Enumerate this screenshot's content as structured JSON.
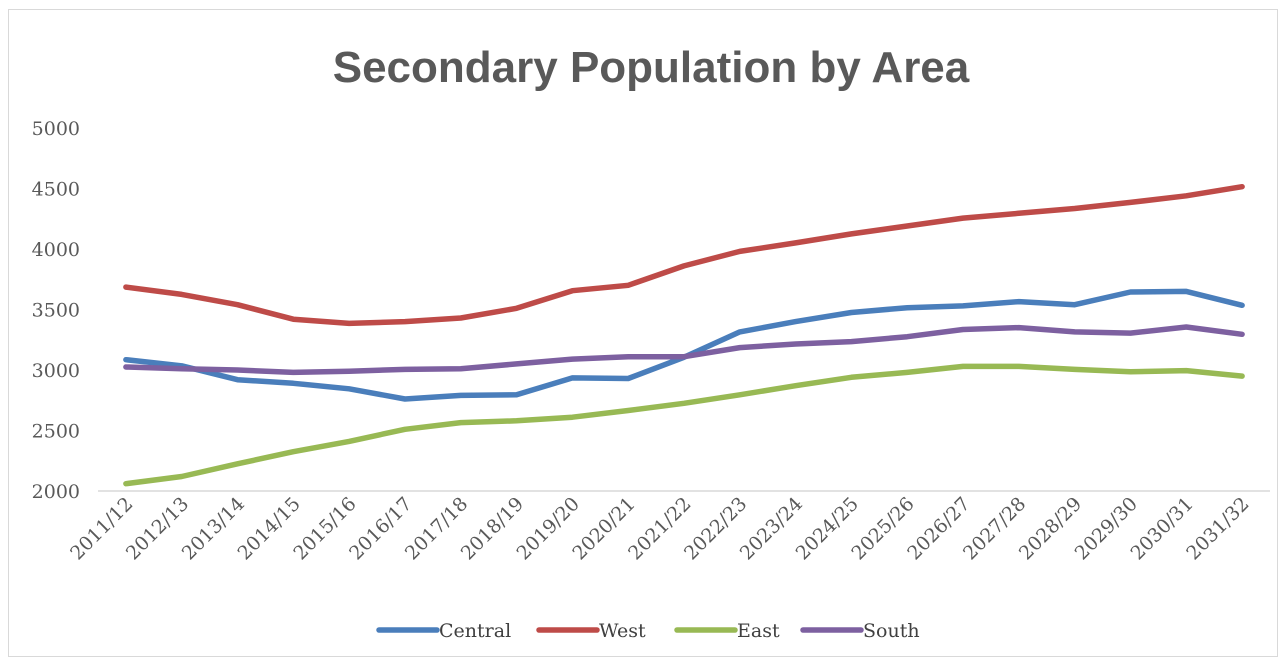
{
  "chart_data": {
    "type": "line",
    "title": "Secondary Population by Area",
    "xlabel": "",
    "ylabel": "",
    "ylim": [
      2000,
      5000
    ],
    "y_ticks": [
      2000,
      2500,
      3000,
      3500,
      4000,
      4500,
      5000
    ],
    "grid": false,
    "legend_position": "bottom",
    "categories": [
      "2011/12",
      "2012/13",
      "2013/14",
      "2014/15",
      "2015/16",
      "2016/17",
      "2017/18",
      "2018/19",
      "2019/20",
      "2020/21",
      "2021/22",
      "2022/23",
      "2023/24",
      "2024/25",
      "2025/26",
      "2026/27",
      "2027/28",
      "2028/29",
      "2029/30",
      "2030/31",
      "2031/32"
    ],
    "series": [
      {
        "name": "Central",
        "color": "#4a7ebb",
        "values": [
          3085,
          3035,
          2920,
          2890,
          2845,
          2760,
          2790,
          2795,
          2935,
          2930,
          3105,
          3315,
          3400,
          3475,
          3515,
          3530,
          3565,
          3540,
          3645,
          3650,
          3535
        ]
      },
      {
        "name": "West",
        "color": "#be4b48",
        "values": [
          3685,
          3625,
          3540,
          3420,
          3385,
          3400,
          3430,
          3510,
          3655,
          3700,
          3860,
          3980,
          4050,
          4125,
          4190,
          4255,
          4295,
          4335,
          4385,
          4440,
          4515
        ]
      },
      {
        "name": "East",
        "color": "#98b954",
        "values": [
          2060,
          2120,
          2225,
          2325,
          2410,
          2510,
          2565,
          2580,
          2610,
          2665,
          2725,
          2795,
          2870,
          2940,
          2980,
          3030,
          3030,
          3005,
          2985,
          2995,
          2950
        ]
      },
      {
        "name": "South",
        "color": "#7d60a0",
        "values": [
          3025,
          3010,
          3000,
          2980,
          2990,
          3005,
          3010,
          3050,
          3090,
          3110,
          3110,
          3185,
          3215,
          3235,
          3275,
          3335,
          3350,
          3315,
          3305,
          3355,
          3295
        ]
      }
    ]
  }
}
